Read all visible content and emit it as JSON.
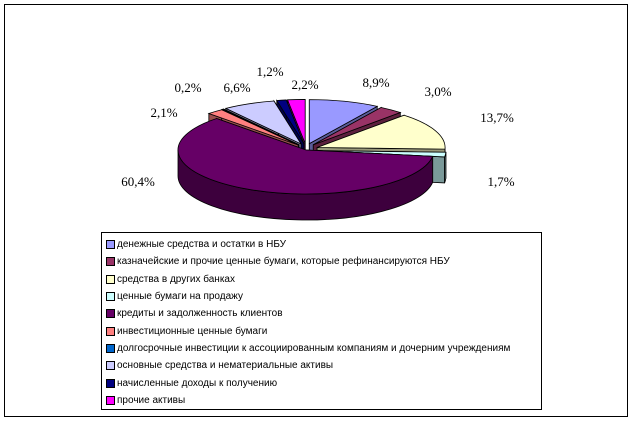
{
  "chart_data": {
    "type": "pie",
    "title": "",
    "categories": [
      "денежные средства и остатки в НБУ",
      "казначейские и прочие ценные бумаги, которые рефинансируются НБУ",
      "средства в других банках",
      "ценные бумаги на продажу",
      "кредиты и задолженность клиентов",
      "инвестиционные ценные бумаги",
      "долгосрочные инвестиции к ассоциированным компаниям и дочерним учреждениям",
      "основные средства и нематериальные активы",
      "начисленные доходы к получению",
      "прочие активы"
    ],
    "values": [
      8.9,
      3.0,
      13.7,
      1.7,
      60.4,
      2.1,
      0.2,
      6.6,
      1.2,
      2.2
    ],
    "value_labels": [
      "8,9%",
      "3,0%",
      "13,7%",
      "1,7%",
      "60,4%",
      "2,1%",
      "0,2%",
      "6,6%",
      "1,2%",
      "2,2%"
    ],
    "colors": [
      "#9999FF",
      "#993366",
      "#FFFFCC",
      "#CCFFFF",
      "#660066",
      "#FF8080",
      "#0066CC",
      "#CCCCFF",
      "#000080",
      "#FF00FF"
    ],
    "style": "3d-exploded",
    "legend_position": "bottom"
  }
}
